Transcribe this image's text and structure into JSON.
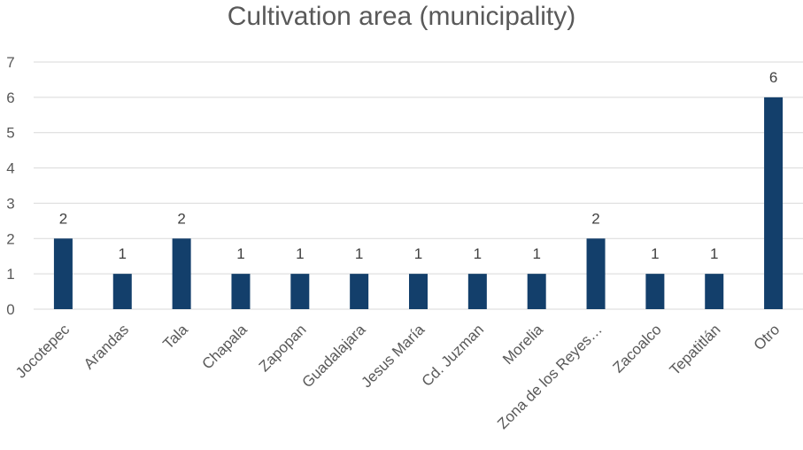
{
  "chart_data": {
    "type": "bar",
    "title": "Cultivation area (municipality)",
    "xlabel": "",
    "ylabel": "",
    "categories": [
      "Jocotepec",
      "Arandas",
      "Tala",
      "Chapala",
      "Zapopan",
      "Guadalajara",
      "Jesus María",
      "Cd. Juzman",
      "Morelia",
      "Zona de los Reyes…",
      "Zacoalco",
      "Tepatitlán",
      "Otro"
    ],
    "values": [
      2,
      1,
      2,
      1,
      1,
      1,
      1,
      1,
      1,
      2,
      1,
      1,
      6
    ],
    "ylim": [
      0,
      7
    ],
    "yticks": [
      "0",
      "1",
      "2",
      "3",
      "4",
      "5",
      "6",
      "7"
    ],
    "grid": true,
    "data_labels": true,
    "bar_color": "#133f6b",
    "grid_color": "#d9d9d9"
  }
}
